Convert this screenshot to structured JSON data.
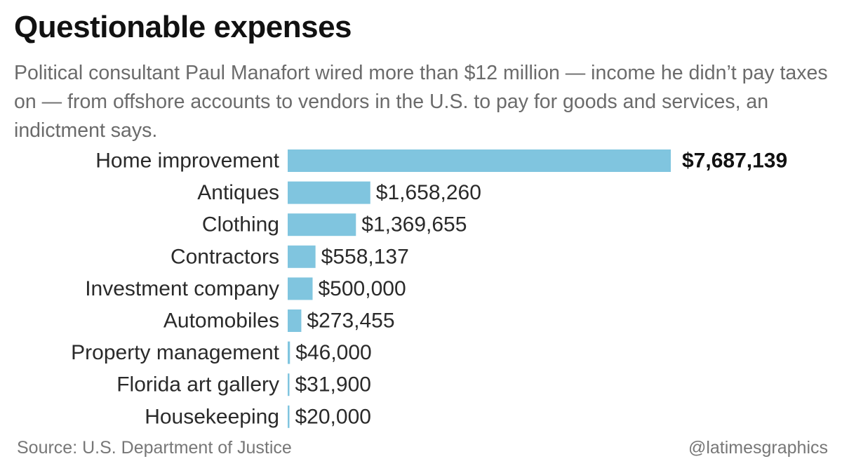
{
  "title": "Questionable expenses",
  "subtitle": "Political consultant Paul Manafort wired more than $12 million — income he didn’t pay taxes on — from offshore accounts to vendors in the U.S. to pay for goods and services, an indictment says.",
  "source": "Source: U.S. Department of Justice",
  "credit": "@latimesgraphics",
  "colors": {
    "bar": "#80c5df",
    "label": "#2a2a2a",
    "value": "#2a2a2a",
    "highlight_value": "#111111"
  },
  "chart_data": {
    "type": "bar",
    "orientation": "horizontal",
    "title": "Questionable expenses",
    "categories": [
      "Home improvement",
      "Antiques",
      "Clothing",
      "Contractors",
      "Investment company",
      "Automobiles",
      "Property management",
      "Florida art gallery",
      "Housekeeping"
    ],
    "values": [
      7687139,
      1658260,
      1369655,
      558137,
      500000,
      273455,
      46000,
      31900,
      20000
    ],
    "value_labels": [
      "$7,687,139",
      "$1,658,260",
      "$1,369,655",
      "$558,137",
      "$500,000",
      "$273,455",
      "$46,000",
      "$31,900",
      "$20,000"
    ],
    "highlighted_index": 0,
    "xlim": [
      0,
      7687139
    ],
    "grid": false,
    "legend": "none"
  }
}
